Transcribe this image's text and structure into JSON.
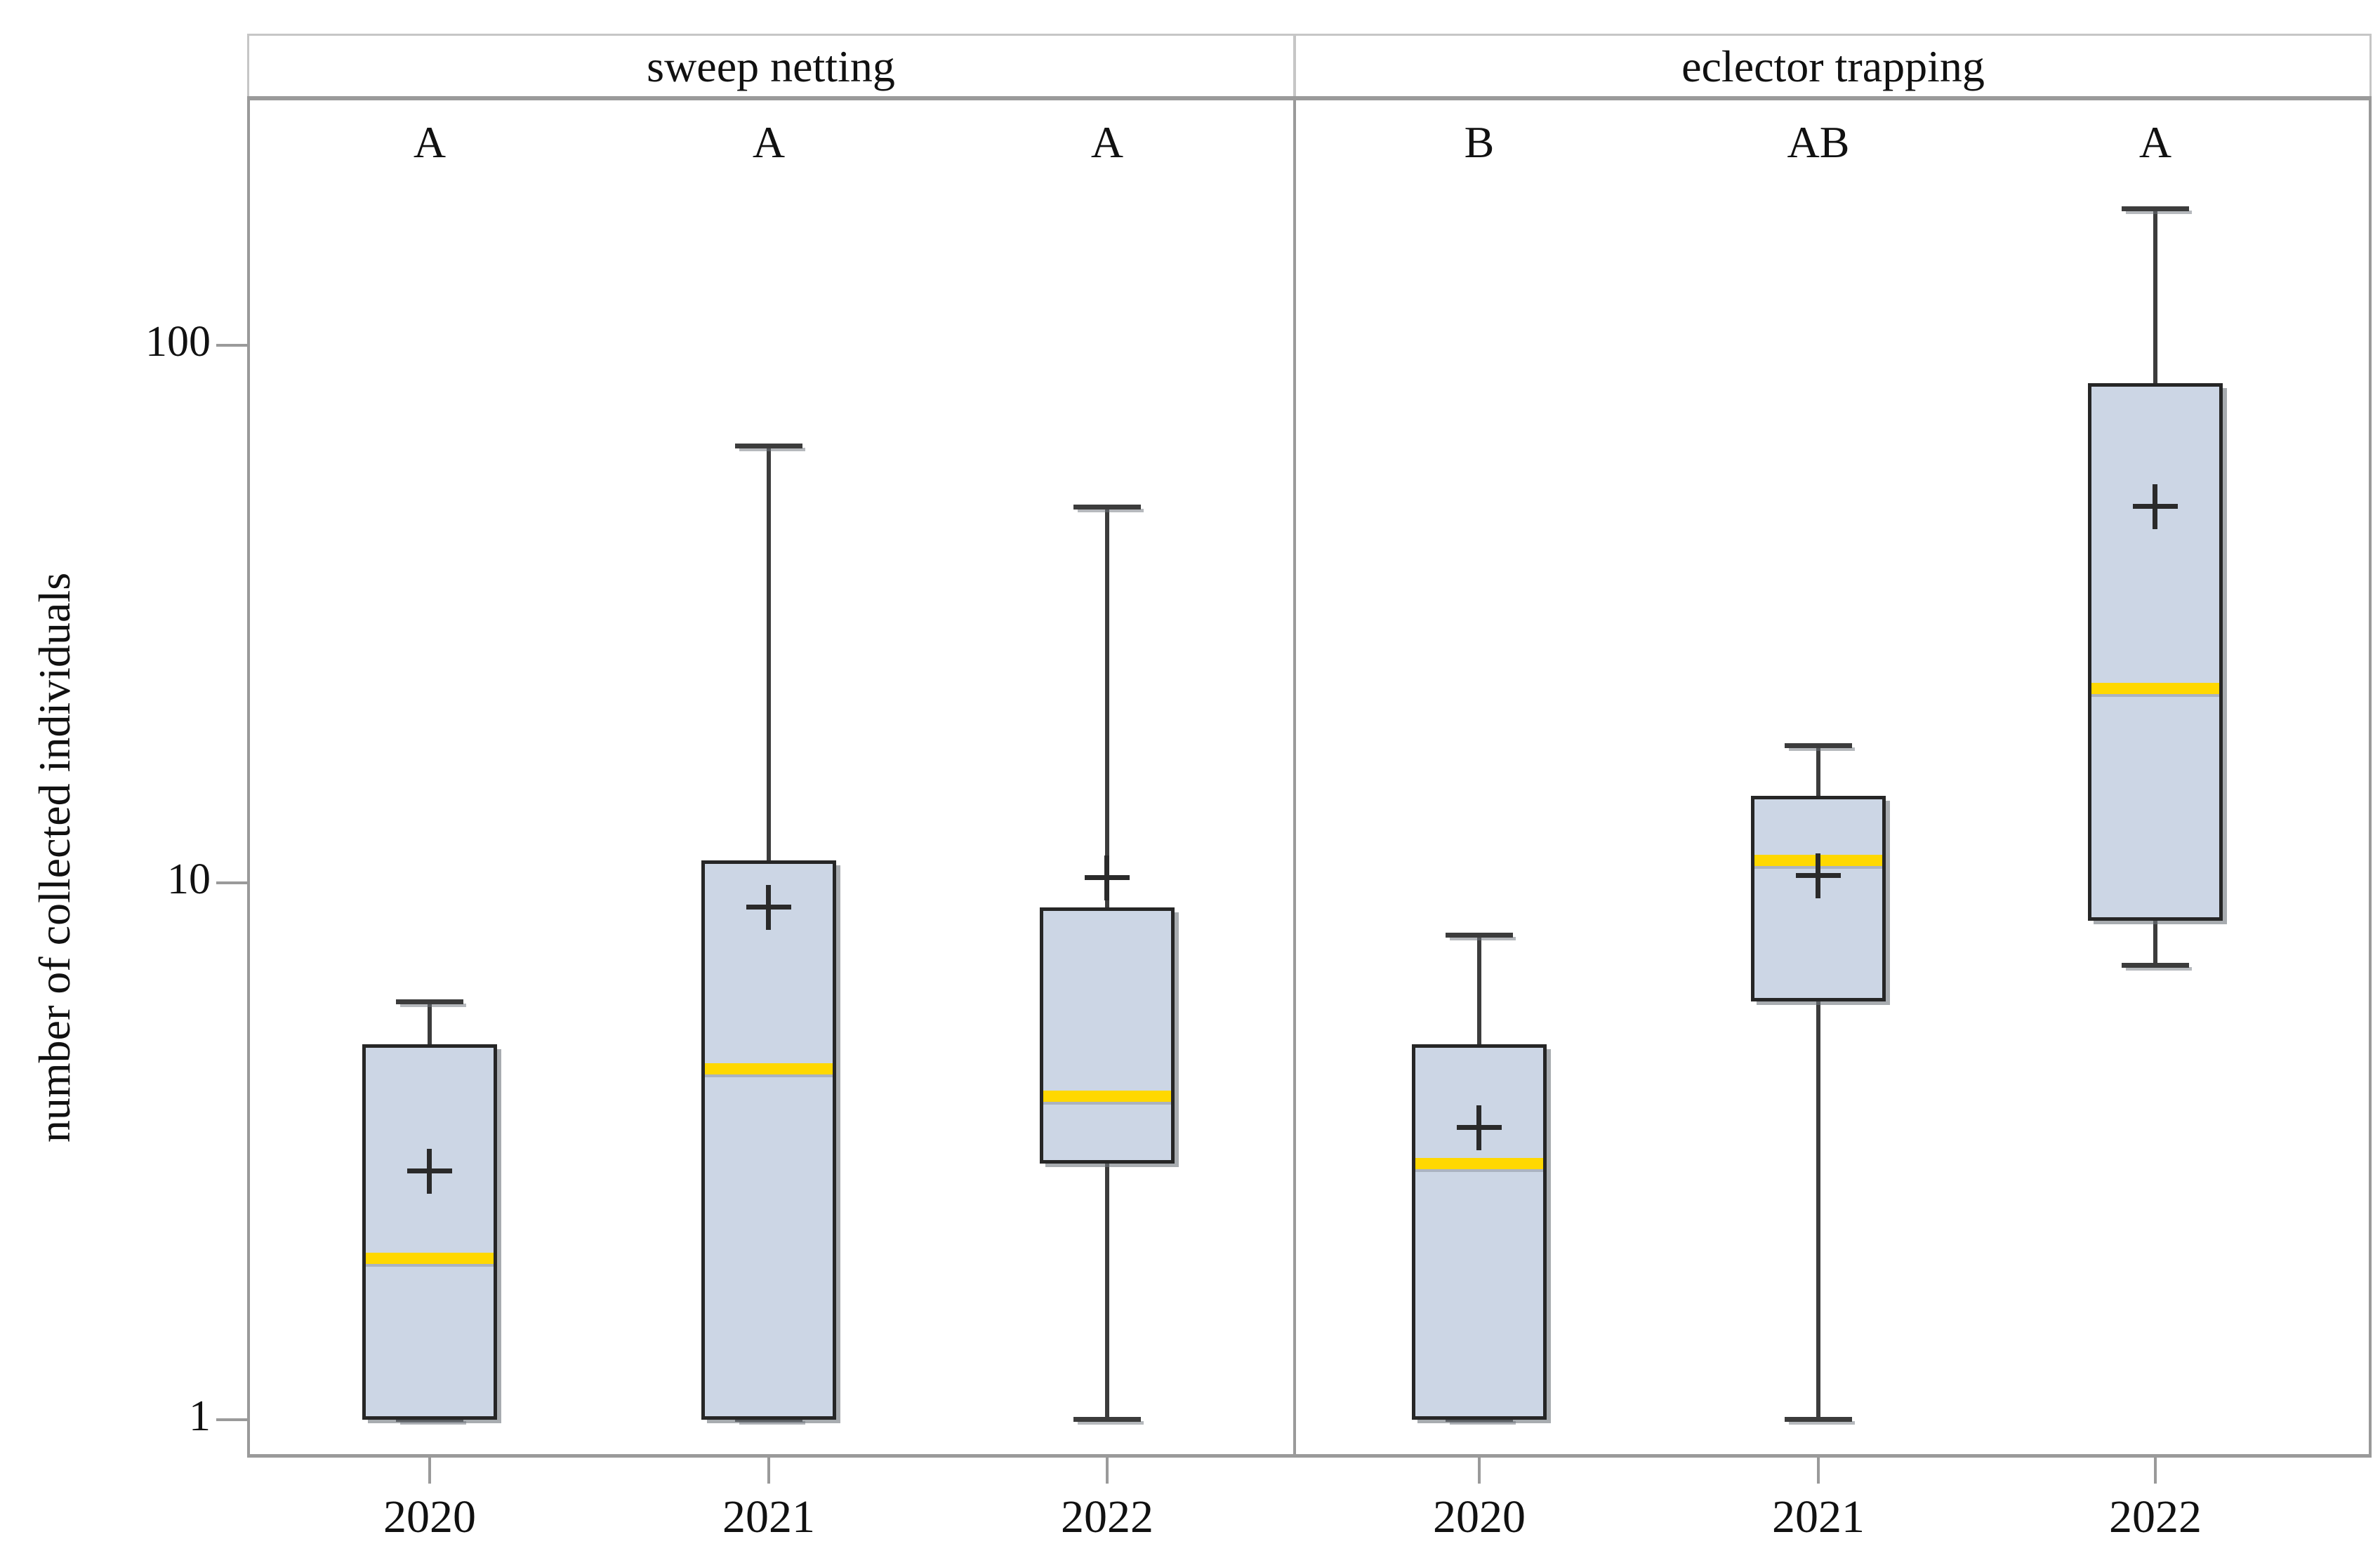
{
  "chart_data": {
    "type": "boxplot",
    "title": "",
    "ylabel": "number of collected individuals",
    "xlabel": "",
    "y_scale": "log10",
    "ylim": [
      0.78,
      320
    ],
    "y_ticks": [
      1,
      10,
      100
    ],
    "y_tick_labels": [
      "1",
      "10",
      "100"
    ],
    "categories": [
      "2020",
      "2021",
      "2022"
    ],
    "legend": "none",
    "grid": "off",
    "marker_legend": {
      "median": "yellow line",
      "mean": "plus sign"
    },
    "panels": [
      {
        "label": "sweep netting",
        "groups": [
          {
            "year": "2020",
            "letter": "A",
            "whisker_low": 1,
            "q1": 1,
            "median": 2,
            "q3": 5,
            "whisker_high": 6,
            "mean": 2.9
          },
          {
            "year": "2021",
            "letter": "A",
            "whisker_low": 1,
            "q1": 1,
            "median": 4.5,
            "q3": 11,
            "whisker_high": 65,
            "mean": 9
          },
          {
            "year": "2022",
            "letter": "A",
            "whisker_low": 1,
            "q1": 3,
            "median": 4,
            "q3": 9,
            "whisker_high": 50,
            "mean": 10.2
          }
        ]
      },
      {
        "label": "eclector trapping",
        "groups": [
          {
            "year": "2020",
            "letter": "B",
            "whisker_low": 1,
            "q1": 1,
            "median": 3,
            "q3": 5,
            "whisker_high": 8,
            "mean": 3.5
          },
          {
            "year": "2021",
            "letter": "AB",
            "whisker_low": 1,
            "q1": 6,
            "median": 11,
            "q3": 14.5,
            "whisker_high": 18,
            "mean": 10.3
          },
          {
            "year": "2022",
            "letter": "A",
            "whisker_low": 7,
            "q1": 8.5,
            "median": 23,
            "q3": 85,
            "whisker_high": 180,
            "mean": 50
          }
        ]
      }
    ],
    "colors": {
      "box_fill": "#ccd6e5",
      "box_border": "#262626",
      "median_line": "#ffd800",
      "whisker": "#3c3c3c",
      "mean_marker": "#2a2a2a",
      "axis_gray": "#9a9a9a",
      "text": "#111111",
      "background": "#ffffff"
    }
  }
}
